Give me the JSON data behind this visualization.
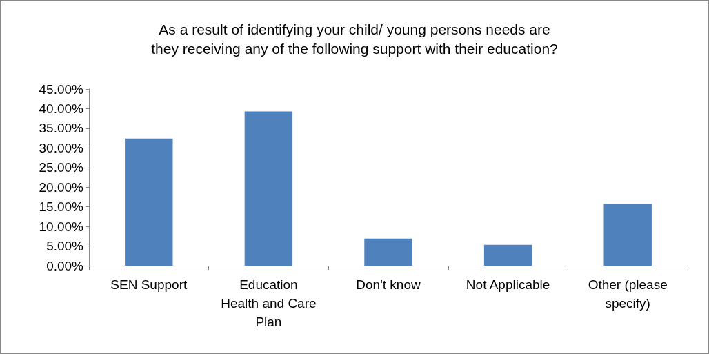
{
  "chart_data": {
    "type": "bar",
    "title": "As a result of identifying your child/ young persons needs are\nthey receiving any of the following support with their education?",
    "categories": [
      "SEN Support",
      "Education\nHealth and Care\nPlan",
      "Don't know",
      "Not Applicable",
      "Other (please\nspecify)"
    ],
    "values": [
      32.4,
      39.3,
      6.9,
      5.3,
      15.7
    ],
    "color": "#4f81bd",
    "ylim": [
      0,
      45
    ],
    "yticks": [
      {
        "value": 0,
        "label": "0.00%"
      },
      {
        "value": 5,
        "label": "5.00%"
      },
      {
        "value": 10,
        "label": "10.00%"
      },
      {
        "value": 15,
        "label": "15.00%"
      },
      {
        "value": 20,
        "label": "20.00%"
      },
      {
        "value": 25,
        "label": "25.00%"
      },
      {
        "value": 30,
        "label": "30.00%"
      },
      {
        "value": 35,
        "label": "35.00%"
      },
      {
        "value": 40,
        "label": "40.00%"
      },
      {
        "value": 45,
        "label": "45.00%"
      }
    ],
    "grid": false
  }
}
